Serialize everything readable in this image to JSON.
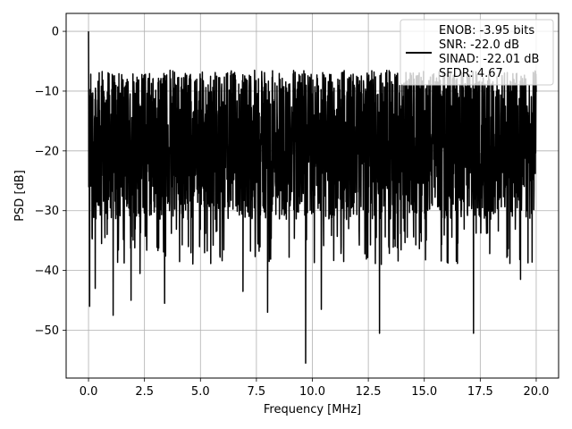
{
  "chart_data": {
    "type": "line",
    "title": "",
    "xlabel": "Frequency [MHz]",
    "ylabel": "PSD [dB]",
    "xlim": [
      -1.0,
      21.0
    ],
    "ylim": [
      -58.0,
      3.0
    ],
    "xticks": [
      0.0,
      2.5,
      5.0,
      7.5,
      10.0,
      12.5,
      15.0,
      17.5,
      20.0
    ],
    "xtick_labels": [
      "0.0",
      "2.5",
      "5.0",
      "7.5",
      "10.0",
      "12.5",
      "15.0",
      "17.5",
      "20.0"
    ],
    "yticks": [
      0,
      -10,
      -20,
      -30,
      -40,
      -50
    ],
    "ytick_labels": [
      "0",
      "−10",
      "−20",
      "−30",
      "−40",
      "−50"
    ],
    "grid": true,
    "legend_position": "top-right",
    "legend_entries": [
      "ENOB: -3.95 bits",
      "SNR: -22.0 dB",
      "SINAD: -22.01 dB",
      "SFDR: 4.67"
    ],
    "line_color": "#000000",
    "series": [
      {
        "x_range": [
          0.0,
          20.0
        ],
        "peak": {
          "x": 0.0,
          "y": 0.0
        },
        "envelope_high": -8.0,
        "envelope_low": -33.0,
        "center": -19.0,
        "notable_dips": [
          {
            "x": 0.05,
            "y": -46.0
          },
          {
            "x": 0.3,
            "y": -43.0
          },
          {
            "x": 1.1,
            "y": -47.5
          },
          {
            "x": 1.9,
            "y": -45.0
          },
          {
            "x": 2.3,
            "y": -40.5
          },
          {
            "x": 3.4,
            "y": -45.5
          },
          {
            "x": 6.9,
            "y": -43.5
          },
          {
            "x": 8.0,
            "y": -47.0
          },
          {
            "x": 9.7,
            "y": -55.5
          },
          {
            "x": 10.4,
            "y": -46.5
          },
          {
            "x": 11.4,
            "y": -38.5
          },
          {
            "x": 13.0,
            "y": -50.5
          },
          {
            "x": 17.2,
            "y": -50.5
          },
          {
            "x": 19.3,
            "y": -41.5
          }
        ]
      }
    ]
  }
}
